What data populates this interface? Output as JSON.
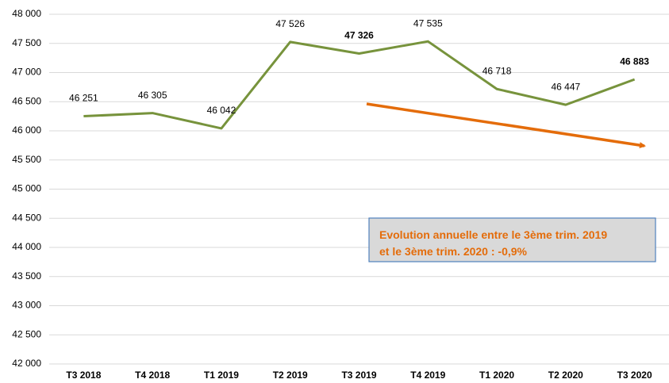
{
  "chart_data": {
    "type": "line",
    "categories": [
      "T3 2018",
      "T4 2018",
      "T1 2019",
      "T2 2019",
      "T3 2019",
      "T4 2019",
      "T1 2020",
      "T2 2020",
      "T3 2020"
    ],
    "values": [
      46251,
      46305,
      46042,
      47526,
      47326,
      47535,
      46718,
      46447,
      46883
    ],
    "value_labels": [
      "46 251",
      "46 305",
      "46 042",
      "47 526",
      "47 326",
      "47 535",
      "46 718",
      "46 447",
      "46 883"
    ],
    "bold_value_labels": [
      4,
      8
    ],
    "color": "#77933c",
    "ylim": [
      42000,
      48000
    ],
    "yticks": [
      {
        "value": 42000,
        "label": "42 000"
      },
      {
        "value": 42500,
        "label": "42 500"
      },
      {
        "value": 43000,
        "label": "43 000"
      },
      {
        "value": 43500,
        "label": "43 500"
      },
      {
        "value": 44000,
        "label": "44 000"
      },
      {
        "value": 44500,
        "label": "44 500"
      },
      {
        "value": 45000,
        "label": "45 000"
      },
      {
        "value": 45500,
        "label": "45 500"
      },
      {
        "value": 46000,
        "label": "46 000"
      },
      {
        "value": 46500,
        "label": "46 500"
      },
      {
        "value": 47000,
        "label": "47 000"
      },
      {
        "value": 47500,
        "label": "47 500"
      },
      {
        "value": 48000,
        "label": "48 000"
      }
    ],
    "grid": true,
    "annotation": [
      "Evolution annuelle entre le 3ème trim. 2019",
      "et le 3ème trim. 2020 : -0,9%"
    ]
  }
}
